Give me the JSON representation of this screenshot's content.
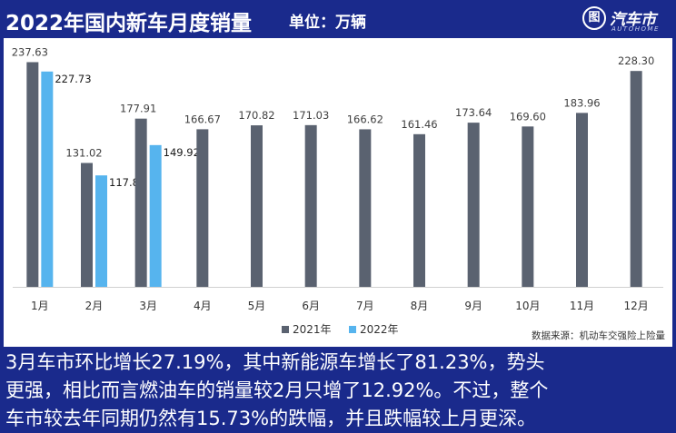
{
  "header": {
    "title": "2022年国内新车月度销量",
    "unit": "单位：万辆",
    "logo_text": "汽车市",
    "logo_sub": "AUTOHOME",
    "logo_mark": "图"
  },
  "source": "数据来源：机动车交强险上险量",
  "caption": {
    "lines": [
      "3月车市环比增长27.19%，其中新能源车增长了81.23%，势头",
      "更强，相比而言燃油车的销量较2月只增了12.92%。不过，整个",
      "车市较去年同期仍然有15.73%的跌幅，并且跌幅较上月更深。"
    ]
  },
  "chart_data": {
    "type": "bar",
    "categories": [
      "1月",
      "2月",
      "3月",
      "4月",
      "5月",
      "6月",
      "7月",
      "8月",
      "9月",
      "10月",
      "11月",
      "12月"
    ],
    "series": [
      {
        "name": "2021年",
        "color": "#5a6270",
        "values": [
          237.63,
          131.02,
          177.91,
          166.67,
          170.82,
          171.03,
          166.62,
          161.46,
          173.64,
          169.6,
          183.96,
          228.3
        ]
      },
      {
        "name": "2022年",
        "color": "#56b4ee",
        "values": [
          227.73,
          117.87,
          149.92,
          null,
          null,
          null,
          null,
          null,
          null,
          null,
          null,
          null
        ]
      }
    ],
    "ylim": [
      0,
      240
    ],
    "grid": false,
    "legend": "bottom-center"
  }
}
